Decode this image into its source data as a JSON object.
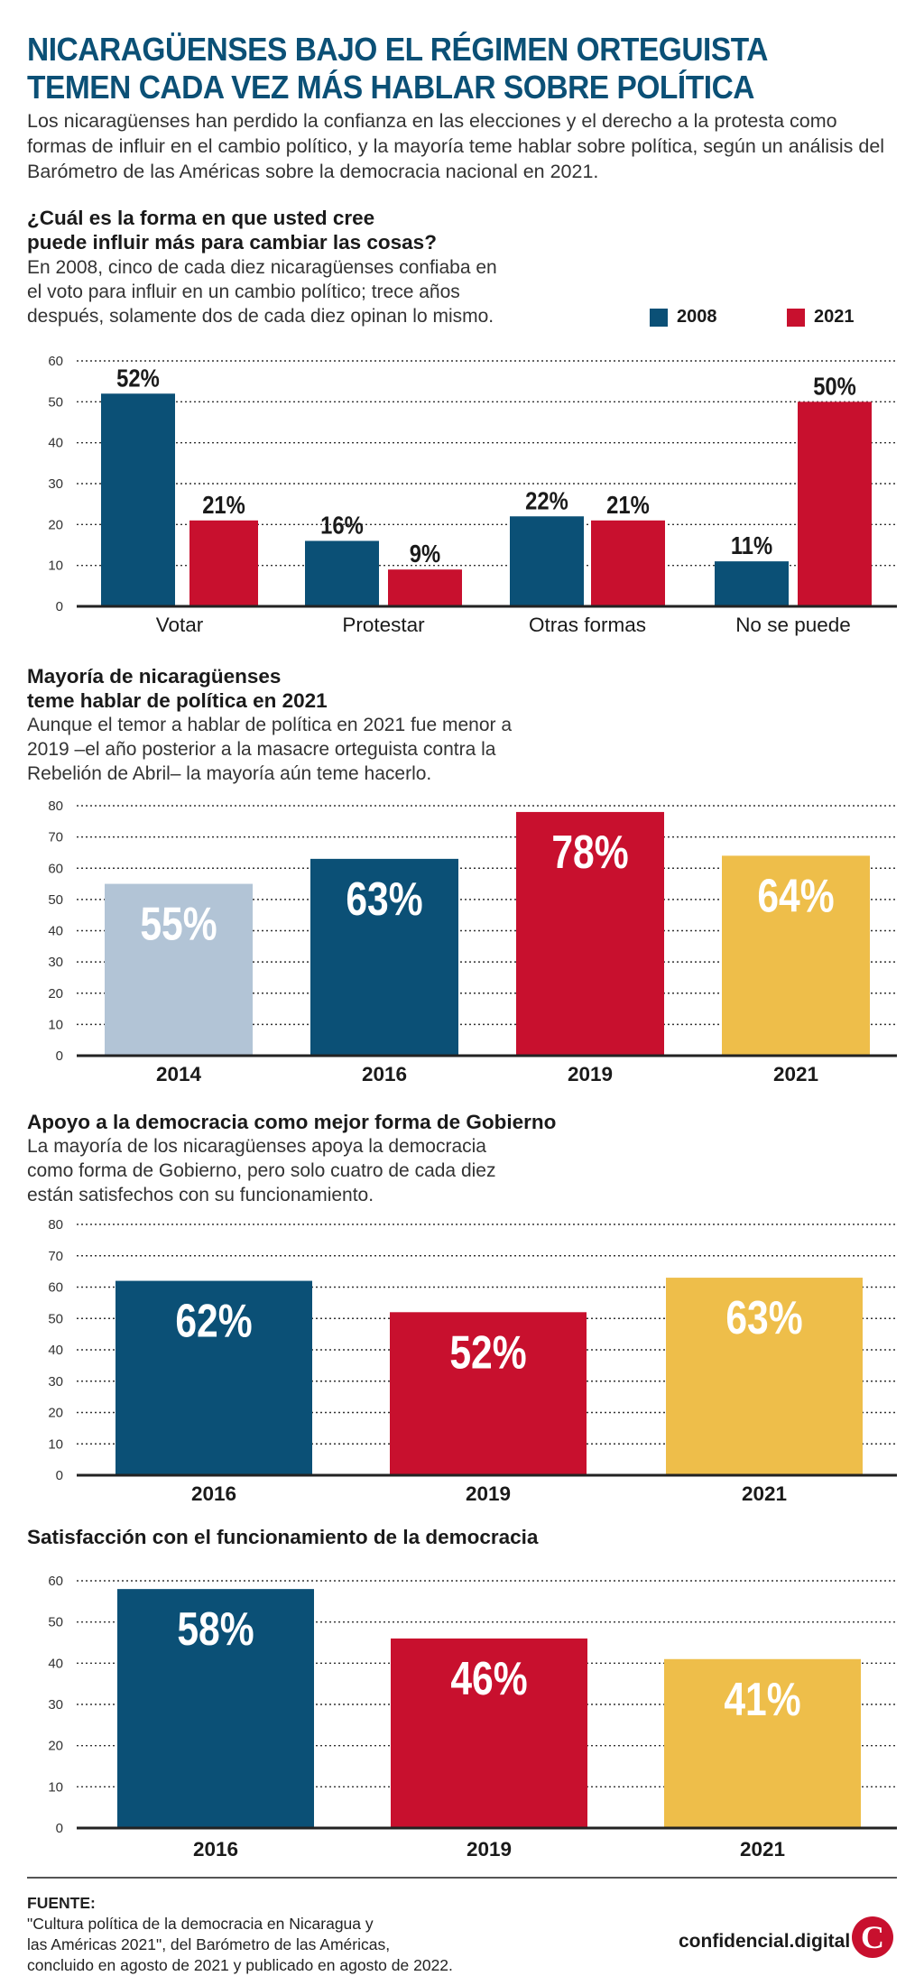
{
  "header": {
    "title_line1": "NICARAGÜENSES BAJO EL RÉGIMEN ORTEGUISTA",
    "title_line2": "TEMEN CADA VEZ MÁS HABLAR SOBRE POLÍTICA",
    "intro": "Los nicaragüenses han perdido la confianza en las elecciones y el derecho a la protesta como formas de influir en el cambio político, y la mayoría teme hablar sobre política, según un análisis del Barómetro de las Américas sobre la democracia nacional en 2021."
  },
  "colors": {
    "navy": "#0b5076",
    "red": "#c8102e",
    "gold": "#eebe4a",
    "lightblue": "#b2c4d6"
  },
  "chart_data": [
    {
      "type": "bar",
      "title_line1": "¿Cuál es la forma en que usted cree",
      "title_line2": "puede influir más para cambiar las cosas?",
      "subtitle_line1": "En 2008, cinco de cada diez nicaragüenses confiaba en",
      "subtitle_line2": "el voto para influir en un cambio político; trece años",
      "subtitle_line3": "después, solamente dos de cada diez opinan lo mismo.",
      "categories": [
        "Votar",
        "Protestar",
        "Otras formas",
        "No se puede"
      ],
      "series": [
        {
          "name": "2008",
          "color": "#0b5076",
          "values": [
            52,
            16,
            22,
            11
          ],
          "labels": [
            "52%",
            "16%",
            "22%",
            "11%"
          ]
        },
        {
          "name": "2021",
          "color": "#c8102e",
          "values": [
            21,
            9,
            21,
            50
          ],
          "labels": [
            "21%",
            "9%",
            "21%",
            "50%"
          ]
        }
      ],
      "ylim": [
        0,
        60
      ],
      "yticks": [
        "0",
        "10",
        "20",
        "30",
        "40",
        "50",
        "60"
      ],
      "grid": true,
      "legend": "top-right"
    },
    {
      "type": "bar",
      "title_line1": "Mayoría de nicaragüenses",
      "title_line2": "teme hablar de política en 2021",
      "subtitle_line1": "Aunque el temor a hablar de política en 2021 fue menor a",
      "subtitle_line2": "2019 –el año posterior a la masacre orteguista contra la",
      "subtitle_line3": "Rebelión de Abril– la mayoría aún teme hacerlo.",
      "categories": [
        "2014",
        "2016",
        "2019",
        "2021"
      ],
      "values": [
        55,
        63,
        78,
        64
      ],
      "labels": [
        "55%",
        "63%",
        "78%",
        "64%"
      ],
      "bar_colors": [
        "#b2c4d6",
        "#0b5076",
        "#c8102e",
        "#eebe4a"
      ],
      "ylim": [
        0,
        80
      ],
      "yticks": [
        "0",
        "10",
        "20",
        "30",
        "40",
        "50",
        "60",
        "70",
        "80"
      ],
      "grid": true
    },
    {
      "type": "bar",
      "title": "Apoyo a la democracia como mejor forma de Gobierno",
      "subtitle_line1": "La mayoría de los nicaragüenses apoya la democracia",
      "subtitle_line2": "como forma de Gobierno, pero solo cuatro de cada diez",
      "subtitle_line3": "están satisfechos con su funcionamiento.",
      "categories": [
        "2016",
        "2019",
        "2021"
      ],
      "values": [
        62,
        52,
        63
      ],
      "labels": [
        "62%",
        "52%",
        "63%"
      ],
      "bar_colors": [
        "#0b5076",
        "#c8102e",
        "#eebe4a"
      ],
      "ylim": [
        0,
        80
      ],
      "yticks": [
        "0",
        "10",
        "20",
        "30",
        "40",
        "50",
        "60",
        "70",
        "80"
      ],
      "grid": true
    },
    {
      "type": "bar",
      "title": "Satisfacción con el funcionamiento de la democracia",
      "categories": [
        "2016",
        "2019",
        "2021"
      ],
      "values": [
        58,
        46,
        41
      ],
      "labels": [
        "58%",
        "46%",
        "41%"
      ],
      "bar_colors": [
        "#0b5076",
        "#c8102e",
        "#eebe4a"
      ],
      "ylim": [
        0,
        60
      ],
      "yticks": [
        "0",
        "10",
        "20",
        "30",
        "40",
        "50",
        "60"
      ],
      "grid": true
    }
  ],
  "footer": {
    "source_label": "FUENTE:",
    "source_line1": "\"Cultura política de la democracia en Nicaragua y",
    "source_line2": "las Américas 2021\", del Barómetro de las Américas,",
    "source_line3": "concluido en agosto de 2021 y publicado en agosto de 2022.",
    "brand": "confidencial.digital",
    "logo_letter": "C"
  }
}
